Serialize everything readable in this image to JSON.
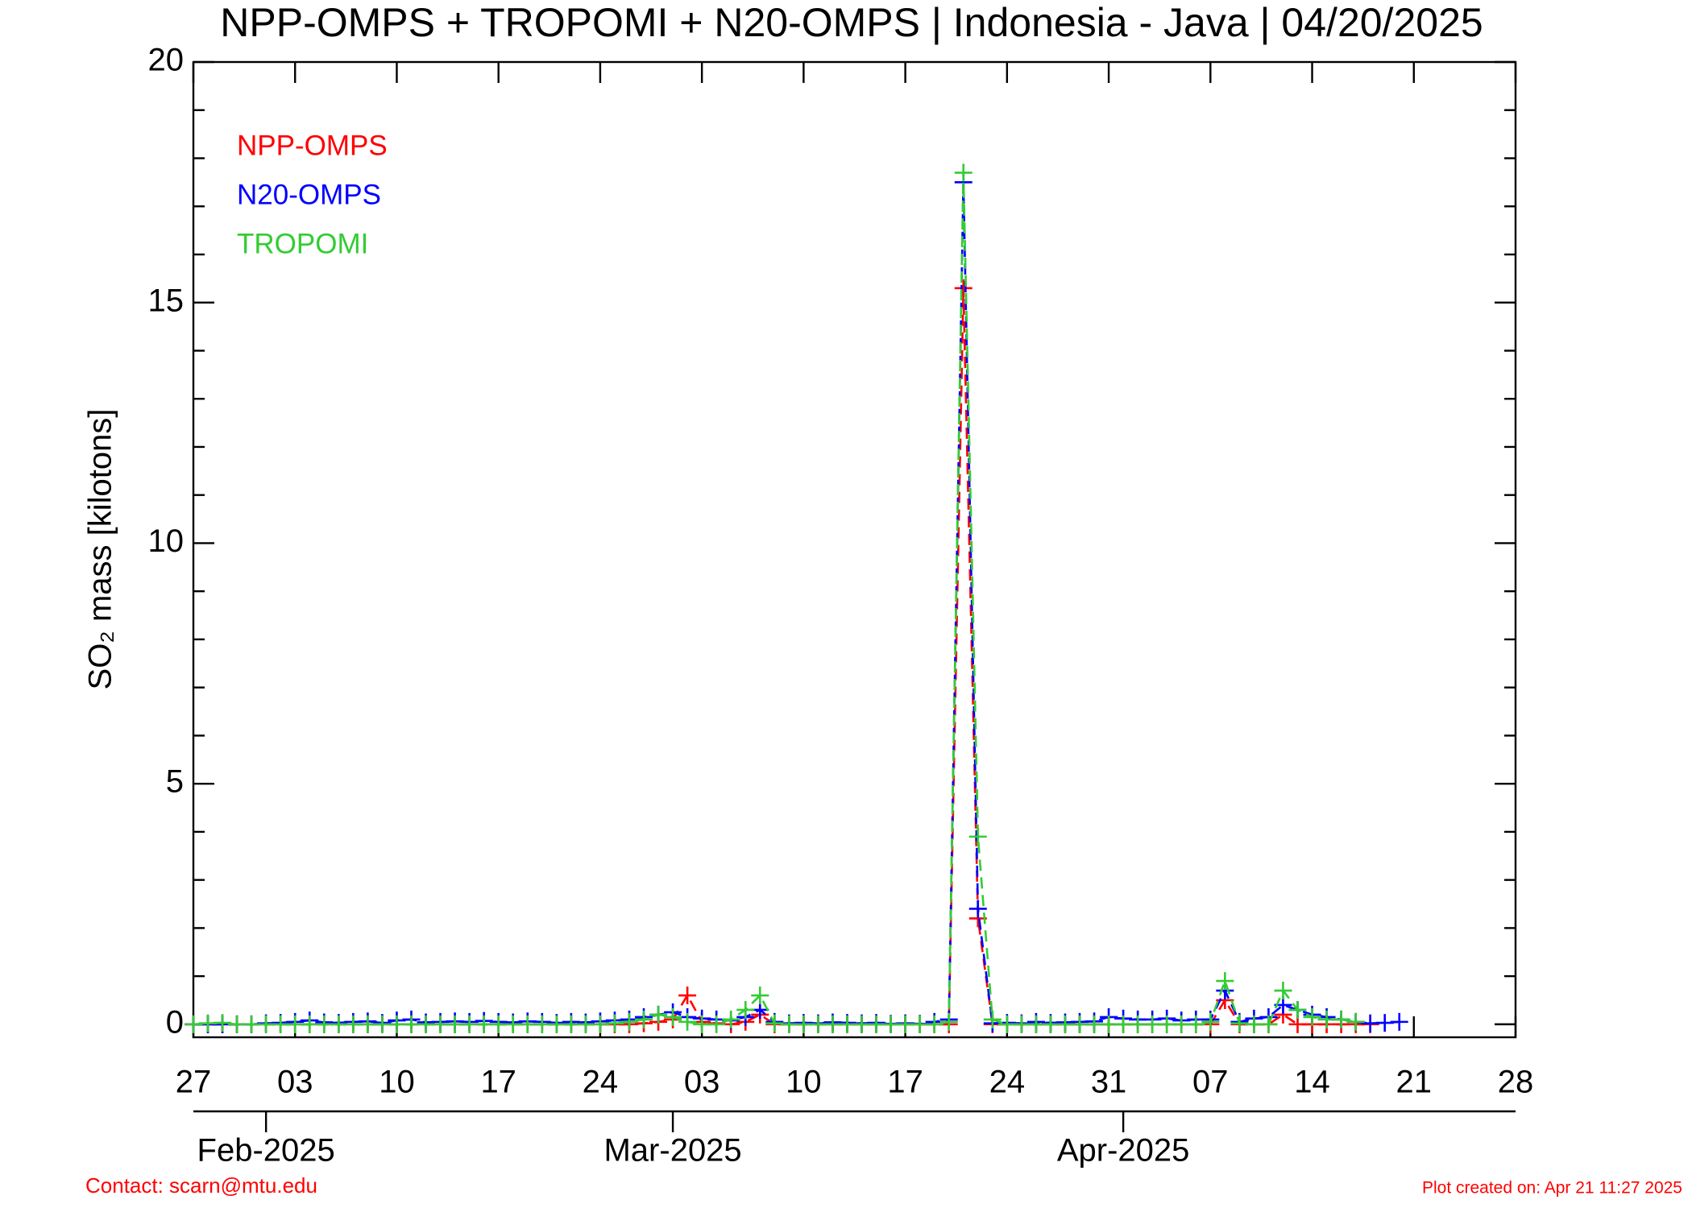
{
  "chart_data": {
    "type": "line",
    "title": "NPP-OMPS + TROPOMI + N20-OMPS | Indonesia - Java | 04/20/2025",
    "y_label": "SO₂ mass [kilotons]",
    "footer_left": "Contact: scarn@mtu.edu",
    "footer_right": "Plot created on: Apr 21 11:27 2025",
    "x": [
      "2025-01-27",
      "2025-01-28",
      "2025-01-29",
      "2025-01-30",
      "2025-01-31",
      "2025-02-01",
      "2025-02-02",
      "2025-02-03",
      "2025-02-04",
      "2025-02-05",
      "2025-02-06",
      "2025-02-07",
      "2025-02-08",
      "2025-02-09",
      "2025-02-10",
      "2025-02-11",
      "2025-02-12",
      "2025-02-13",
      "2025-02-14",
      "2025-02-15",
      "2025-02-16",
      "2025-02-17",
      "2025-02-18",
      "2025-02-19",
      "2025-02-20",
      "2025-02-21",
      "2025-02-22",
      "2025-02-23",
      "2025-02-24",
      "2025-02-25",
      "2025-02-26",
      "2025-02-27",
      "2025-02-28",
      "2025-03-01",
      "2025-03-02",
      "2025-03-03",
      "2025-03-04",
      "2025-03-05",
      "2025-03-06",
      "2025-03-07",
      "2025-03-08",
      "2025-03-09",
      "2025-03-10",
      "2025-03-11",
      "2025-03-12",
      "2025-03-13",
      "2025-03-14",
      "2025-03-15",
      "2025-03-16",
      "2025-03-17",
      "2025-03-18",
      "2025-03-19",
      "2025-03-20",
      "2025-03-21",
      "2025-03-22",
      "2025-03-23",
      "2025-03-24",
      "2025-03-25",
      "2025-03-26",
      "2025-03-27",
      "2025-03-28",
      "2025-03-29",
      "2025-03-30",
      "2025-03-31",
      "2025-04-01",
      "2025-04-02",
      "2025-04-03",
      "2025-04-04",
      "2025-04-05",
      "2025-04-06",
      "2025-04-07",
      "2025-04-08",
      "2025-04-09",
      "2025-04-10",
      "2025-04-11",
      "2025-04-12",
      "2025-04-13",
      "2025-04-14",
      "2025-04-15",
      "2025-04-16",
      "2025-04-17",
      "2025-04-18",
      "2025-04-19",
      "2025-04-20"
    ],
    "series": [
      {
        "name": "NPP-OMPS",
        "color": "#ff0000",
        "values": [
          0,
          0,
          0,
          0,
          0,
          0,
          0,
          0,
          0,
          0,
          0,
          0,
          0,
          0,
          0,
          0,
          0,
          0,
          0,
          0,
          0,
          0,
          0,
          0,
          0,
          0,
          0,
          0,
          0,
          0,
          0,
          0.02,
          0.05,
          0.1,
          0.6,
          0.05,
          0.02,
          0,
          0.05,
          0.2,
          0,
          0,
          0,
          0,
          0,
          0,
          0,
          0,
          0,
          0,
          0,
          0,
          0,
          15.3,
          2.2,
          0,
          0,
          0,
          0,
          0,
          0,
          0,
          0,
          0,
          0,
          0,
          0,
          0,
          0,
          0,
          0,
          0.5,
          0,
          0,
          0,
          0.2,
          0,
          0,
          0,
          0,
          0,
          0,
          null,
          null
        ]
      },
      {
        "name": "N20-OMPS",
        "color": "#0000ff",
        "values": [
          0,
          0,
          0,
          0,
          0,
          0.02,
          0.03,
          0.05,
          0.08,
          0.04,
          0.03,
          0.05,
          0.06,
          0.03,
          0.08,
          0.1,
          0.04,
          0.05,
          0.06,
          0.05,
          0.07,
          0.05,
          0.04,
          0.06,
          0.05,
          0.03,
          0.05,
          0.04,
          0.06,
          0.08,
          0.1,
          0.15,
          0.2,
          0.25,
          0.15,
          0.12,
          0.1,
          0.08,
          0.15,
          0.3,
          0.05,
          0.02,
          0.03,
          0.02,
          0.04,
          0.03,
          0.02,
          0.03,
          0.01,
          0.02,
          0.01,
          0.05,
          0.1,
          17.5,
          2.4,
          0.02,
          0.03,
          0.02,
          0.05,
          0.03,
          0.04,
          0.05,
          0.06,
          0.15,
          0.12,
          0.1,
          0.1,
          0.12,
          0.08,
          0.1,
          0.1,
          0.7,
          0.05,
          0.12,
          0.15,
          0.4,
          0.3,
          0.2,
          0.15,
          0.1,
          0.05,
          0.02,
          0.03,
          0.05
        ]
      },
      {
        "name": "TROPOMI",
        "color": "#33cc33",
        "values": [
          0,
          0.02,
          0.03,
          0,
          0,
          0,
          0,
          0,
          0,
          0,
          0,
          0,
          0,
          0,
          0,
          0,
          0,
          0,
          0,
          0,
          0,
          0,
          0,
          0,
          0,
          0,
          0,
          0,
          0,
          0.02,
          0.05,
          0.1,
          0.2,
          0.15,
          0.05,
          0,
          0,
          0.1,
          0.3,
          0.6,
          0.02,
          0,
          0,
          0,
          0,
          0,
          0,
          0,
          0,
          0,
          0,
          0,
          0.05,
          17.7,
          3.9,
          0.1,
          0,
          0,
          0,
          0,
          0,
          0,
          0,
          0,
          0,
          0,
          0,
          0,
          0,
          0,
          0.05,
          0.9,
          0.02,
          0,
          0,
          0.7,
          0.3,
          0.15,
          0.1,
          0.1,
          0.05,
          null,
          null,
          null
        ]
      }
    ],
    "xlim": [
      "2025-01-27",
      "2025-04-28"
    ],
    "xticks": [
      {
        "value": "2025-01-27",
        "label": "27"
      },
      {
        "value": "2025-02-03",
        "label": "03"
      },
      {
        "value": "2025-02-10",
        "label": "10"
      },
      {
        "value": "2025-02-17",
        "label": "17"
      },
      {
        "value": "2025-02-24",
        "label": "24"
      },
      {
        "value": "2025-03-03",
        "label": "03"
      },
      {
        "value": "2025-03-10",
        "label": "10"
      },
      {
        "value": "2025-03-17",
        "label": "17"
      },
      {
        "value": "2025-03-24",
        "label": "24"
      },
      {
        "value": "2025-03-31",
        "label": "31"
      },
      {
        "value": "2025-04-07",
        "label": "07"
      },
      {
        "value": "2025-04-14",
        "label": "14"
      },
      {
        "value": "2025-04-21",
        "label": "21"
      },
      {
        "value": "2025-04-28",
        "label": "28"
      }
    ],
    "month_ticks": [
      {
        "value": "2025-02-01",
        "label": "Feb-2025"
      },
      {
        "value": "2025-03-01",
        "label": "Mar-2025"
      },
      {
        "value": "2025-04-01",
        "label": "Apr-2025"
      }
    ],
    "ylim": [
      -0.27,
      20
    ],
    "yticks": [
      0,
      5,
      10,
      15,
      20
    ],
    "y_minor_ticks": [
      1,
      2,
      3,
      4,
      6,
      7,
      8,
      9,
      11,
      12,
      13,
      14,
      16,
      17,
      18,
      19
    ],
    "legend": "upper left"
  }
}
